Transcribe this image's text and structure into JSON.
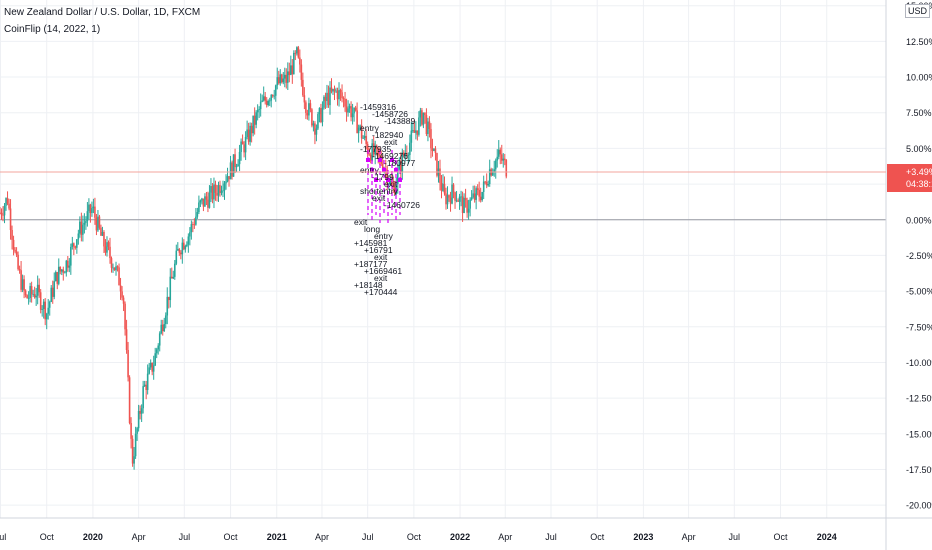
{
  "header": {
    "symbol_title": "New Zealand Dollar / U.S. Dollar, 1D, FXCM",
    "indicator_title": "CoinFlip (14, 2022, 1)",
    "currency_label": "USD"
  },
  "price_badge": {
    "value": "+3.49%",
    "countdown": "04:38:13",
    "color": "#ef5350"
  },
  "colors": {
    "up": "#26a69a",
    "down": "#ef5350",
    "signal": "#d500f9",
    "grid": "#eef0f4",
    "text": "#131722",
    "price_line": "#f3a49d",
    "zero_line": "#9598a1"
  },
  "chart_data": {
    "type": "line",
    "title": "New Zealand Dollar / U.S. Dollar, 1D, FXCM",
    "ylabel": "",
    "xlabel": "",
    "y_unit": "%",
    "ylim": [
      -20.9,
      15.4
    ],
    "y_ticks": [
      "15.00%",
      "12.50%",
      "10.00%",
      "7.50%",
      "5.00%",
      "2.50%",
      "0.00%",
      "-2.50%",
      "-5.00%",
      "-7.50%",
      "-10.00%",
      "-12.50%",
      "-15.00%",
      "-17.50%",
      "-20.00%"
    ],
    "y_tick_values": [
      15,
      12.5,
      10,
      7.5,
      5,
      2.5,
      0,
      -2.5,
      -5,
      -7.5,
      -10,
      -12.5,
      -15,
      -17.5,
      -20
    ],
    "x_ticks": [
      "Jul",
      "Oct",
      "2020",
      "Apr",
      "Jul",
      "Oct",
      "2021",
      "Apr",
      "Jul",
      "Oct",
      "2022",
      "Apr",
      "Jul",
      "Oct",
      "2023",
      "Apr",
      "Jul",
      "Oct",
      "2024"
    ],
    "x_tick_dates": [
      "2019-07-01",
      "2019-10-01",
      "2020-01-01",
      "2020-04-01",
      "2020-07-01",
      "2020-10-01",
      "2021-01-01",
      "2021-04-01",
      "2021-07-01",
      "2021-10-01",
      "2022-01-01",
      "2022-04-01",
      "2022-07-01",
      "2022-10-01",
      "2023-01-01",
      "2023-04-01",
      "2023-07-01",
      "2023-10-01",
      "2024-01-01"
    ],
    "x_range": [
      "2019-06-30",
      "2024-04-28"
    ],
    "series": [
      {
        "x": [
          "2019-06-30",
          "2019-07-15",
          "2019-08-01",
          "2019-08-20",
          "2019-09-10",
          "2019-10-01",
          "2019-10-20",
          "2019-11-10",
          "2019-12-01",
          "2019-12-31",
          "2020-01-20",
          "2020-02-10",
          "2020-03-01",
          "2020-03-19",
          "2020-04-10",
          "2020-05-01",
          "2020-06-01",
          "2020-06-20",
          "2020-07-10",
          "2020-08-01",
          "2020-09-01",
          "2020-10-01",
          "2020-11-01",
          "2020-12-01",
          "2021-01-01",
          "2021-01-20",
          "2021-02-10",
          "2021-03-01",
          "2021-03-20",
          "2021-04-10",
          "2021-05-01",
          "2021-06-01",
          "2021-07-01",
          "2021-08-01",
          "2021-08-20",
          "2021-09-10",
          "2021-10-01",
          "2021-10-20",
          "2021-11-10",
          "2021-12-01",
          "2021-12-20",
          "2022-01-10",
          "2022-01-28",
          "2022-02-15",
          "2022-03-01",
          "2022-03-20",
          "2022-04-05"
        ],
        "values": [
          0.5,
          1.5,
          -3.0,
          -5.5,
          -5.0,
          -6.5,
          -4.0,
          -3.0,
          -1.0,
          0.8,
          -1.5,
          -3.0,
          -5.0,
          -17.0,
          -12.0,
          -10.0,
          -5.0,
          -2.0,
          -1.0,
          1.0,
          2.0,
          3.5,
          5.5,
          8.0,
          9.5,
          9.8,
          11.5,
          8.0,
          6.5,
          8.5,
          9.0,
          7.5,
          5.0,
          4.0,
          2.0,
          4.5,
          6.0,
          7.5,
          4.5,
          1.5,
          2.0,
          0.8,
          1.5,
          2.0,
          3.5,
          4.5,
          3.5
        ]
      }
    ],
    "annotations": [
      "-1459316",
      "-1458726",
      "-143889",
      "entry",
      "-182940",
      "exit",
      "-177935",
      "-1469276",
      "-180977",
      "entry",
      "-1799",
      "exit",
      "shortentry",
      "exit",
      "-1460726",
      "exit",
      "long",
      "entry",
      "+145981",
      "+16791",
      "exit",
      "+187177",
      "+1669461",
      "exit",
      "+18148",
      "+170444"
    ]
  }
}
